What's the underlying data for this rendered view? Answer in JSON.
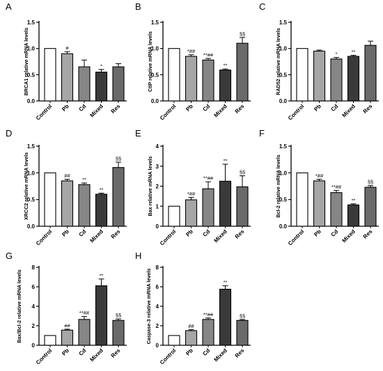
{
  "colors": {
    "Control": "#ffffff",
    "Pb": "#a6a6a6",
    "Cd": "#868686",
    "Mixed": "#3a3a3a",
    "Res": "#6a6a6a",
    "axis": "#000000"
  },
  "chart_data": [
    {
      "panel": "A",
      "type": "bar",
      "ylabel": "BRCA1 relative mRNA levels",
      "categories": [
        "Control",
        "Pb",
        "Cd",
        "Mixed",
        "Res"
      ],
      "values": [
        1.0,
        0.9,
        0.65,
        0.55,
        0.65
      ],
      "errors": [
        0.0,
        0.04,
        0.13,
        0.05,
        0.06
      ],
      "annotations": [
        "",
        "#",
        "",
        "*",
        ""
      ],
      "ylim": [
        0,
        1.5
      ],
      "yticks": [
        "0.0",
        "0.5",
        "1.0",
        "1.5"
      ]
    },
    {
      "panel": "B",
      "type": "bar",
      "ylabel": "CtIP relative mRNA levels",
      "categories": [
        "Control",
        "Pb",
        "Cd",
        "Mixed",
        "Res"
      ],
      "values": [
        1.0,
        0.85,
        0.78,
        0.59,
        1.1
      ],
      "errors": [
        0.0,
        0.03,
        0.03,
        0.02,
        0.11
      ],
      "annotations": [
        "",
        "*##",
        "**##",
        "**",
        "§§"
      ],
      "ylim": [
        0,
        1.5
      ],
      "yticks": [
        "0.0",
        "0.5",
        "1.0",
        "1.5"
      ]
    },
    {
      "panel": "C",
      "type": "bar",
      "ylabel": "RAD52 relative mRNA levels",
      "categories": [
        "Control",
        "Pb",
        "Cd",
        "Mixed",
        "Res"
      ],
      "values": [
        1.0,
        0.95,
        0.8,
        0.85,
        1.06
      ],
      "errors": [
        0.0,
        0.02,
        0.03,
        0.02,
        0.08
      ],
      "annotations": [
        "",
        "",
        "*",
        "**",
        ""
      ],
      "ylim": [
        0,
        1.5
      ],
      "yticks": [
        "0.0",
        "0.5",
        "1.0",
        "1.5"
      ]
    },
    {
      "panel": "D",
      "type": "bar",
      "ylabel": "XRCC2 relative mRNA levels",
      "categories": [
        "Control",
        "Pb",
        "Cd",
        "Mixed",
        "Res"
      ],
      "values": [
        1.0,
        0.85,
        0.78,
        0.6,
        1.1
      ],
      "errors": [
        0.0,
        0.03,
        0.03,
        0.02,
        0.1
      ],
      "annotations": [
        "",
        "##",
        "**",
        "**",
        "§§"
      ],
      "ylim": [
        0,
        1.5
      ],
      "yticks": [
        "0.0",
        "0.5",
        "1.0",
        "1.5"
      ]
    },
    {
      "panel": "E",
      "type": "bar",
      "ylabel": "Bax relative mRNA levels",
      "categories": [
        "Control",
        "Pb",
        "Cd",
        "Mixed",
        "Res"
      ],
      "values": [
        1.0,
        1.32,
        1.87,
        2.25,
        1.97
      ],
      "errors": [
        0.0,
        0.12,
        0.35,
        0.85,
        0.55
      ],
      "annotations": [
        "",
        "*##",
        "**##",
        "**",
        "§§"
      ],
      "ylim": [
        0,
        4
      ],
      "yticks": [
        "0",
        "1",
        "2",
        "3",
        "4"
      ]
    },
    {
      "panel": "F",
      "type": "bar",
      "ylabel": "Bcl-2 relative mRNA levels",
      "categories": [
        "Control",
        "Pb",
        "Cd",
        "Mixed",
        "Res"
      ],
      "values": [
        1.0,
        0.85,
        0.63,
        0.4,
        0.73
      ],
      "errors": [
        0.0,
        0.03,
        0.04,
        0.02,
        0.03
      ],
      "annotations": [
        "",
        "*##",
        "**##",
        "**",
        "§§"
      ],
      "ylim": [
        0,
        1.5
      ],
      "yticks": [
        "0.0",
        "0.5",
        "1.0",
        "1.5"
      ]
    },
    {
      "panel": "G",
      "type": "bar",
      "ylabel": "Bax/Bcl-2 relative mRNA levels",
      "categories": [
        "Control",
        "Pb",
        "Cd",
        "Mixed",
        "Res"
      ],
      "values": [
        1.0,
        1.55,
        2.65,
        6.1,
        2.55
      ],
      "errors": [
        0.0,
        0.1,
        0.3,
        0.7,
        0.15
      ],
      "annotations": [
        "",
        "##",
        "**##",
        "**",
        "§§"
      ],
      "ylim": [
        0,
        8
      ],
      "yticks": [
        "0",
        "2",
        "4",
        "6",
        "8"
      ]
    },
    {
      "panel": "H",
      "type": "bar",
      "ylabel": "Caspase-3 relative mRNA levels",
      "categories": [
        "Control",
        "Pb",
        "Cd",
        "Mixed",
        "Res"
      ],
      "values": [
        1.0,
        1.5,
        2.65,
        5.75,
        2.55
      ],
      "errors": [
        0.0,
        0.1,
        0.15,
        0.35,
        0.1
      ],
      "annotations": [
        "",
        "##",
        "**##",
        "**",
        "§§"
      ],
      "ylim": [
        0,
        8
      ],
      "yticks": [
        "0",
        "2",
        "4",
        "6",
        "8"
      ]
    }
  ]
}
